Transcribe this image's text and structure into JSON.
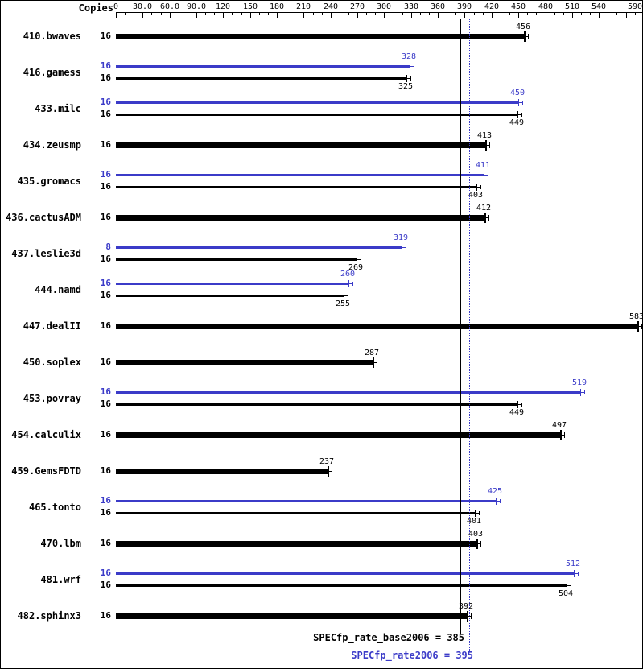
{
  "chart_data": {
    "type": "bar",
    "orientation": "horizontal",
    "copies_header": "Copies",
    "axis": {
      "min": 0,
      "max": 590,
      "tick_interval_minor": 10,
      "tick_interval_major": 30,
      "tick_values": [
        0,
        30,
        60,
        90,
        120,
        150,
        180,
        210,
        240,
        270,
        300,
        330,
        360,
        390,
        420,
        450,
        480,
        510,
        540,
        590
      ],
      "tick_labels": [
        "0",
        "30.0",
        "60.0",
        "90.0",
        "120",
        "150",
        "180",
        "210",
        "240",
        "270",
        "300",
        "330",
        "360",
        "390",
        "420",
        "450",
        "480",
        "510",
        "540",
        "590"
      ]
    },
    "benchmarks": [
      {
        "name": "410.bwaves",
        "bars": [
          {
            "kind": "single",
            "copies": 16,
            "value": 456
          }
        ]
      },
      {
        "name": "416.gamess",
        "bars": [
          {
            "kind": "peak",
            "copies": 16,
            "value": 328
          },
          {
            "kind": "base",
            "copies": 16,
            "value": 325
          }
        ]
      },
      {
        "name": "433.milc",
        "bars": [
          {
            "kind": "peak",
            "copies": 16,
            "value": 450
          },
          {
            "kind": "base",
            "copies": 16,
            "value": 449
          }
        ]
      },
      {
        "name": "434.zeusmp",
        "bars": [
          {
            "kind": "single",
            "copies": 16,
            "value": 413
          }
        ]
      },
      {
        "name": "435.gromacs",
        "bars": [
          {
            "kind": "peak",
            "copies": 16,
            "value": 411
          },
          {
            "kind": "base",
            "copies": 16,
            "value": 403
          }
        ]
      },
      {
        "name": "436.cactusADM",
        "bars": [
          {
            "kind": "single",
            "copies": 16,
            "value": 412
          }
        ]
      },
      {
        "name": "437.leslie3d",
        "bars": [
          {
            "kind": "peak",
            "copies": 8,
            "value": 319
          },
          {
            "kind": "base",
            "copies": 16,
            "value": 269
          }
        ]
      },
      {
        "name": "444.namd",
        "bars": [
          {
            "kind": "peak",
            "copies": 16,
            "value": 260
          },
          {
            "kind": "base",
            "copies": 16,
            "value": 255
          }
        ]
      },
      {
        "name": "447.dealII",
        "bars": [
          {
            "kind": "single",
            "copies": 16,
            "value": 583
          }
        ]
      },
      {
        "name": "450.soplex",
        "bars": [
          {
            "kind": "single",
            "copies": 16,
            "value": 287
          }
        ]
      },
      {
        "name": "453.povray",
        "bars": [
          {
            "kind": "peak",
            "copies": 16,
            "value": 519
          },
          {
            "kind": "base",
            "copies": 16,
            "value": 449
          }
        ]
      },
      {
        "name": "454.calculix",
        "bars": [
          {
            "kind": "single",
            "copies": 16,
            "value": 497
          }
        ]
      },
      {
        "name": "459.GemsFDTD",
        "bars": [
          {
            "kind": "single",
            "copies": 16,
            "value": 237
          }
        ]
      },
      {
        "name": "465.tonto",
        "bars": [
          {
            "kind": "peak",
            "copies": 16,
            "value": 425
          },
          {
            "kind": "base",
            "copies": 16,
            "value": 401
          }
        ]
      },
      {
        "name": "470.lbm",
        "bars": [
          {
            "kind": "single",
            "copies": 16,
            "value": 403
          }
        ]
      },
      {
        "name": "481.wrf",
        "bars": [
          {
            "kind": "peak",
            "copies": 16,
            "value": 512
          },
          {
            "kind": "base",
            "copies": 16,
            "value": 504
          }
        ]
      },
      {
        "name": "482.sphinx3",
        "bars": [
          {
            "kind": "single",
            "copies": 16,
            "value": 392
          }
        ]
      }
    ],
    "reference_lines": [
      {
        "label": "SPECfp_rate_base2006 = 385",
        "value": 385,
        "style": "solid",
        "color": "#000000"
      },
      {
        "label": "SPECfp_rate2006 = 395",
        "value": 395,
        "style": "dotted",
        "color": "#3b3bc8"
      }
    ],
    "colors": {
      "base": "#000000",
      "peak": "#3b3bc8"
    }
  }
}
